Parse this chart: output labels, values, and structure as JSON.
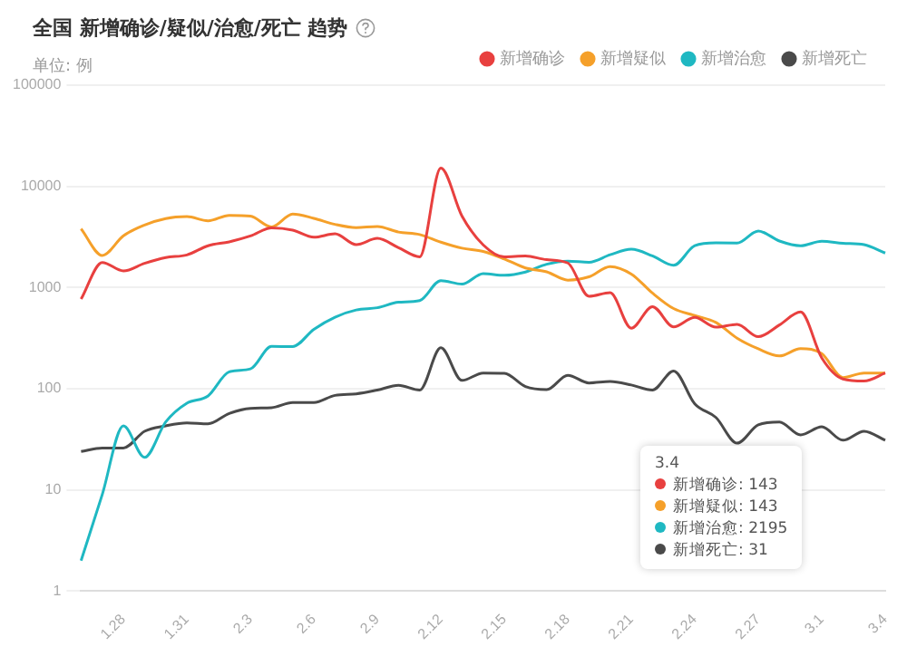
{
  "chart_data": {
    "type": "line",
    "title": "全国 新增确诊/疑似/治愈/死亡 趋势",
    "ylabel": "单位: 例",
    "categories": [
      null,
      null,
      "1.28",
      null,
      null,
      "1.31",
      null,
      null,
      "2.3",
      null,
      null,
      "2.6",
      null,
      null,
      "2.9",
      null,
      null,
      "2.12",
      null,
      null,
      "2.15",
      null,
      null,
      "2.18",
      null,
      null,
      "2.21",
      null,
      null,
      "2.24",
      null,
      null,
      "2.27",
      null,
      null,
      "3.1",
      null,
      null,
      "3.4"
    ],
    "series": [
      {
        "name": "新增确诊",
        "color": "#e8403f",
        "values": [
          769,
          1771,
          1459,
          1737,
          1982,
          2102,
          2590,
          2829,
          3235,
          3887,
          3694,
          3143,
          3399,
          2656,
          3062,
          2478,
          2015,
          15152,
          5090,
          2641,
          2009,
          2048,
          1886,
          1749,
          820,
          889,
          397,
          648,
          409,
          508,
          406,
          433,
          327,
          427,
          573,
          202,
          125,
          119,
          143
        ]
      },
      {
        "name": "新增疑似",
        "color": "#f5a02a",
        "values": [
          3806,
          2077,
          3248,
          4148,
          4812,
          5019,
          4562,
          5173,
          5072,
          3971,
          5328,
          4833,
          4214,
          3916,
          4008,
          3536,
          3342,
          2807,
          2450,
          2277,
          1918,
          1563,
          1432,
          1185,
          1277,
          1614,
          1361,
          882,
          620,
          530,
          452,
          316,
          248,
          211,
          249,
          222,
          129,
          143,
          143
        ]
      },
      {
        "name": "新增治愈",
        "color": "#1fb8c2",
        "values": [
          2,
          9,
          43,
          21,
          47,
          72,
          85,
          147,
          157,
          262,
          261,
          387,
          510,
          600,
          632,
          716,
          744,
          1171,
          1081,
          1373,
          1323,
          1425,
          1701,
          1824,
          1779,
          2109,
          2394,
          2056,
          1661,
          2589,
          2761,
          2754,
          3622,
          2885,
          2589,
          2867,
          2742,
          2652,
          2195
        ]
      },
      {
        "name": "新增死亡",
        "color": "#4a4a4a",
        "values": [
          24,
          26,
          26,
          38,
          43,
          46,
          45,
          57,
          64,
          65,
          73,
          73,
          86,
          89,
          97,
          108,
          97,
          254,
          121,
          143,
          142,
          105,
          98,
          136,
          114,
          118,
          109,
          97,
          150,
          71,
          52,
          29,
          44,
          47,
          35,
          42,
          31,
          38,
          31
        ]
      }
    ],
    "log": "y",
    "ylim": [
      1,
      100000
    ],
    "yticks": [
      1,
      10,
      100,
      1000,
      10000,
      100000
    ],
    "grid": "y",
    "legend": "top right",
    "marker": "none",
    "line_style": "solid",
    "annotations": [
      "3.4",
      "新增确诊: 143",
      "新增疑似: 143",
      "新增治愈: 2195",
      "新增死亡: 31"
    ]
  }
}
